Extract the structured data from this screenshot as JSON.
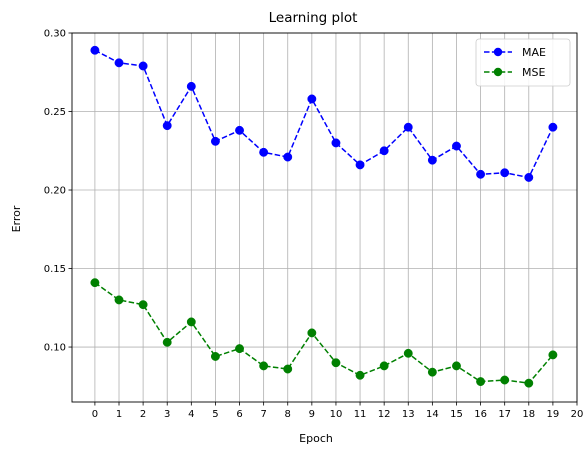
{
  "chart_data": {
    "type": "line",
    "title": "Learning plot",
    "xlabel": "Epoch",
    "ylabel": "Error",
    "xlim": [
      -0.95,
      20
    ],
    "ylim": [
      0.065,
      0.3
    ],
    "x_ticks": [
      0,
      1,
      2,
      3,
      4,
      5,
      6,
      7,
      8,
      9,
      10,
      11,
      12,
      13,
      14,
      15,
      16,
      17,
      18,
      19,
      20
    ],
    "y_ticks": [
      0.1,
      0.15,
      0.2,
      0.25,
      0.3
    ],
    "y_tick_labels": [
      "0.10",
      "0.15",
      "0.20",
      "0.25",
      "0.30"
    ],
    "grid": true,
    "legend_position": "top-right",
    "x": [
      0,
      1,
      2,
      3,
      4,
      5,
      6,
      7,
      8,
      9,
      10,
      11,
      12,
      13,
      14,
      15,
      16,
      17,
      18,
      19
    ],
    "series": [
      {
        "name": "MAE",
        "color": "#0000ff",
        "line_style": "dashed",
        "marker": "circle",
        "values": [
          0.289,
          0.281,
          0.279,
          0.241,
          0.266,
          0.231,
          0.238,
          0.224,
          0.221,
          0.258,
          0.23,
          0.216,
          0.225,
          0.24,
          0.219,
          0.228,
          0.21,
          0.211,
          0.208,
          0.24
        ]
      },
      {
        "name": "MSE",
        "color": "#008000",
        "line_style": "dashed",
        "marker": "circle",
        "values": [
          0.141,
          0.13,
          0.127,
          0.103,
          0.116,
          0.094,
          0.099,
          0.088,
          0.086,
          0.109,
          0.09,
          0.082,
          0.088,
          0.096,
          0.084,
          0.088,
          0.078,
          0.079,
          0.077,
          0.095
        ]
      }
    ]
  }
}
